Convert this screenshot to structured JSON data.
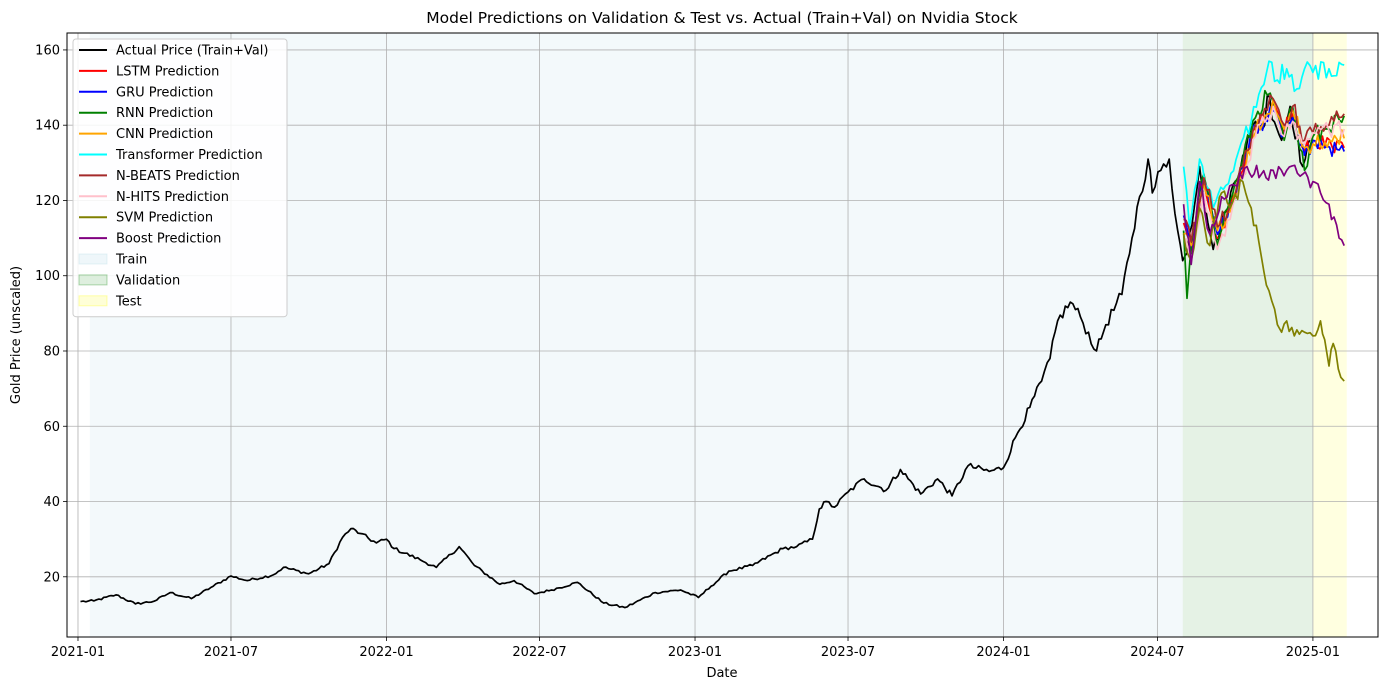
{
  "chart_data": {
    "type": "line",
    "title": "Model Predictions on Validation & Test vs. Actual (Train+Val) on Nvidia Stock",
    "xlabel": "Date",
    "ylabel": "Gold Price (unscaled)",
    "xlim": [
      "2020-12-19",
      "2025-03-19"
    ],
    "ylim": [
      4,
      164.5
    ],
    "x_ticks": [
      {
        "date": "2021-01-01",
        "label": "2021-01"
      },
      {
        "date": "2021-07-01",
        "label": "2021-07"
      },
      {
        "date": "2022-01-01",
        "label": "2022-01"
      },
      {
        "date": "2022-07-01",
        "label": "2022-07"
      },
      {
        "date": "2023-01-01",
        "label": "2023-01"
      },
      {
        "date": "2023-07-01",
        "label": "2023-07"
      },
      {
        "date": "2024-01-01",
        "label": "2024-01"
      },
      {
        "date": "2024-07-01",
        "label": "2024-07"
      },
      {
        "date": "2025-01-01",
        "label": "2025-01"
      }
    ],
    "y_ticks": [
      20,
      40,
      60,
      80,
      100,
      120,
      140,
      160
    ],
    "grid": true,
    "legend_position": "upper-left",
    "regions": [
      {
        "name": "Train",
        "start": "2021-01-15",
        "end": "2024-07-31",
        "color": "#add8e6",
        "alpha": 0.15
      },
      {
        "name": "Validation",
        "start": "2024-07-31",
        "end": "2025-01-01",
        "color": "#008000",
        "alpha": 0.1
      },
      {
        "name": "Test",
        "start": "2025-01-01",
        "end": "2025-02-10",
        "color": "#ffff00",
        "alpha": 0.12
      }
    ],
    "series": [
      {
        "name": "Actual Price (Train+Val)",
        "color": "#000000",
        "points": [
          [
            "2021-01-04",
            13.4
          ],
          [
            "2021-01-20",
            13.6
          ],
          [
            "2021-02-15",
            15.2
          ],
          [
            "2021-03-10",
            12.8
          ],
          [
            "2021-04-01",
            13.5
          ],
          [
            "2021-04-20",
            15.8
          ],
          [
            "2021-05-15",
            14.2
          ],
          [
            "2021-06-10",
            17.5
          ],
          [
            "2021-07-01",
            20.2
          ],
          [
            "2021-07-20",
            19.0
          ],
          [
            "2021-08-20",
            20.5
          ],
          [
            "2021-09-01",
            22.5
          ],
          [
            "2021-10-01",
            20.8
          ],
          [
            "2021-10-25",
            23.5
          ],
          [
            "2021-11-10",
            30.5
          ],
          [
            "2021-11-20",
            32.8
          ],
          [
            "2021-12-01",
            31.5
          ],
          [
            "2021-12-20",
            29.0
          ],
          [
            "2022-01-01",
            30.0
          ],
          [
            "2022-01-10",
            27.5
          ],
          [
            "2022-02-10",
            24.5
          ],
          [
            "2022-03-01",
            22.5
          ],
          [
            "2022-03-28",
            28.0
          ],
          [
            "2022-04-15",
            23.0
          ],
          [
            "2022-05-15",
            18.0
          ],
          [
            "2022-06-01",
            19.0
          ],
          [
            "2022-06-25",
            15.5
          ],
          [
            "2022-07-15",
            16.5
          ],
          [
            "2022-08-15",
            18.5
          ],
          [
            "2022-09-15",
            13.0
          ],
          [
            "2022-10-10",
            11.8
          ],
          [
            "2022-11-15",
            15.8
          ],
          [
            "2022-12-15",
            16.5
          ],
          [
            "2023-01-05",
            14.5
          ],
          [
            "2023-01-20",
            17.5
          ],
          [
            "2023-02-10",
            21.5
          ],
          [
            "2023-03-10",
            23.0
          ],
          [
            "2023-04-15",
            27.5
          ],
          [
            "2023-05-01",
            28.0
          ],
          [
            "2023-05-20",
            30.0
          ],
          [
            "2023-05-28",
            38.0
          ],
          [
            "2023-06-05",
            40.0
          ],
          [
            "2023-06-15",
            38.5
          ],
          [
            "2023-07-01",
            42.5
          ],
          [
            "2023-07-20",
            46.0
          ],
          [
            "2023-08-15",
            43.0
          ],
          [
            "2023-09-01",
            48.5
          ],
          [
            "2023-09-25",
            42.0
          ],
          [
            "2023-10-15",
            46.0
          ],
          [
            "2023-11-01",
            41.5
          ],
          [
            "2023-11-20",
            49.5
          ],
          [
            "2023-12-15",
            48.0
          ],
          [
            "2024-01-01",
            49.0
          ],
          [
            "2024-01-15",
            57.0
          ],
          [
            "2024-02-01",
            65.0
          ],
          [
            "2024-02-15",
            72.0
          ],
          [
            "2024-02-25",
            78.0
          ],
          [
            "2024-03-05",
            88.0
          ],
          [
            "2024-03-20",
            93.0
          ],
          [
            "2024-04-01",
            89.0
          ],
          [
            "2024-04-20",
            80.0
          ],
          [
            "2024-05-01",
            87.0
          ],
          [
            "2024-05-20",
            95.0
          ],
          [
            "2024-06-01",
            110.0
          ],
          [
            "2024-06-10",
            121.0
          ],
          [
            "2024-06-20",
            131.0
          ],
          [
            "2024-06-25",
            122.0
          ],
          [
            "2024-07-05",
            128.0
          ],
          [
            "2024-07-15",
            131.0
          ],
          [
            "2024-07-25",
            112.0
          ],
          [
            "2024-07-31",
            104.0
          ],
          [
            "2024-08-05",
            106.0
          ],
          [
            "2024-08-20",
            129.0
          ],
          [
            "2024-09-05",
            107.0
          ],
          [
            "2024-09-20",
            117.0
          ],
          [
            "2024-10-10",
            132.0
          ],
          [
            "2024-10-25",
            141.0
          ],
          [
            "2024-11-05",
            140.0
          ],
          [
            "2024-11-08",
            148.0
          ],
          [
            "2024-11-25",
            136.0
          ],
          [
            "2024-12-05",
            145.0
          ],
          [
            "2024-12-20",
            129.0
          ],
          [
            "2025-01-01",
            137.0
          ]
        ]
      },
      {
        "name": "LSTM Prediction",
        "color": "#ff0000",
        "points": [
          [
            "2024-08-01",
            114.0
          ],
          [
            "2024-08-10",
            106.0
          ],
          [
            "2024-08-25",
            125.0
          ],
          [
            "2024-09-10",
            110.0
          ],
          [
            "2024-09-25",
            118.0
          ],
          [
            "2024-10-10",
            128.0
          ],
          [
            "2024-10-25",
            139.0
          ],
          [
            "2024-11-08",
            142.0
          ],
          [
            "2024-11-15",
            146.0
          ],
          [
            "2024-11-28",
            138.0
          ],
          [
            "2024-12-08",
            143.0
          ],
          [
            "2024-12-22",
            133.0
          ],
          [
            "2025-01-01",
            136.0
          ],
          [
            "2025-01-15",
            134.5
          ],
          [
            "2025-02-07",
            134.0
          ]
        ]
      },
      {
        "name": "GRU Prediction",
        "color": "#0000ff",
        "points": [
          [
            "2024-08-01",
            116.0
          ],
          [
            "2024-08-10",
            107.0
          ],
          [
            "2024-08-25",
            126.0
          ],
          [
            "2024-09-10",
            111.0
          ],
          [
            "2024-09-25",
            119.0
          ],
          [
            "2024-10-10",
            129.0
          ],
          [
            "2024-10-25",
            140.0
          ],
          [
            "2024-11-08",
            141.0
          ],
          [
            "2024-11-15",
            144.0
          ],
          [
            "2024-11-28",
            137.0
          ],
          [
            "2024-12-08",
            142.0
          ],
          [
            "2024-12-22",
            132.0
          ],
          [
            "2025-01-01",
            136.0
          ],
          [
            "2025-01-15",
            134.0
          ],
          [
            "2025-02-07",
            133.0
          ]
        ]
      },
      {
        "name": "RNN Prediction",
        "color": "#008000",
        "points": [
          [
            "2024-08-01",
            112.0
          ],
          [
            "2024-08-05",
            94.0
          ],
          [
            "2024-08-12",
            112.0
          ],
          [
            "2024-08-25",
            127.0
          ],
          [
            "2024-09-10",
            108.0
          ],
          [
            "2024-09-25",
            120.0
          ],
          [
            "2024-10-10",
            131.0
          ],
          [
            "2024-10-25",
            142.0
          ],
          [
            "2024-11-08",
            148.0
          ],
          [
            "2024-11-15",
            146.0
          ],
          [
            "2024-11-28",
            136.0
          ],
          [
            "2024-12-08",
            145.0
          ],
          [
            "2024-12-22",
            128.0
          ],
          [
            "2025-01-01",
            137.0
          ],
          [
            "2025-01-15",
            139.0
          ],
          [
            "2025-02-07",
            142.5
          ]
        ]
      },
      {
        "name": "CNN Prediction",
        "color": "#ffa500",
        "points": [
          [
            "2024-08-01",
            111.0
          ],
          [
            "2024-08-10",
            108.0
          ],
          [
            "2024-08-25",
            124.0
          ],
          [
            "2024-09-10",
            112.0
          ],
          [
            "2024-09-25",
            117.0
          ],
          [
            "2024-10-10",
            127.0
          ],
          [
            "2024-10-25",
            138.0
          ],
          [
            "2024-11-08",
            143.0
          ],
          [
            "2024-11-15",
            147.0
          ],
          [
            "2024-11-28",
            139.0
          ],
          [
            "2024-12-08",
            144.0
          ],
          [
            "2024-12-22",
            134.0
          ],
          [
            "2025-01-01",
            135.0
          ],
          [
            "2025-01-15",
            135.5
          ],
          [
            "2025-02-07",
            136.5
          ]
        ]
      },
      {
        "name": "Transformer Prediction",
        "color": "#00ffff",
        "points": [
          [
            "2024-08-01",
            129.0
          ],
          [
            "2024-08-08",
            113.0
          ],
          [
            "2024-08-20",
            131.0
          ],
          [
            "2024-09-05",
            118.0
          ],
          [
            "2024-09-20",
            124.0
          ],
          [
            "2024-10-05",
            133.0
          ],
          [
            "2024-10-20",
            141.0
          ],
          [
            "2024-11-01",
            150.0
          ],
          [
            "2024-11-10",
            157.0
          ],
          [
            "2024-11-20",
            152.0
          ],
          [
            "2024-12-01",
            155.0
          ],
          [
            "2024-12-10",
            149.0
          ],
          [
            "2024-12-22",
            155.0
          ],
          [
            "2025-01-01",
            154.0
          ],
          [
            "2025-01-20",
            155.0
          ],
          [
            "2025-02-07",
            156.0
          ]
        ]
      },
      {
        "name": "N-BEATS Prediction",
        "color": "#a52a2a",
        "points": [
          [
            "2024-08-01",
            115.0
          ],
          [
            "2024-08-10",
            109.0
          ],
          [
            "2024-08-25",
            126.0
          ],
          [
            "2024-09-10",
            113.0
          ],
          [
            "2024-09-25",
            119.0
          ],
          [
            "2024-10-10",
            129.0
          ],
          [
            "2024-10-25",
            140.0
          ],
          [
            "2024-11-08",
            144.0
          ],
          [
            "2024-11-15",
            147.0
          ],
          [
            "2024-11-28",
            140.0
          ],
          [
            "2024-12-08",
            145.0
          ],
          [
            "2024-12-22",
            136.0
          ],
          [
            "2025-01-01",
            138.0
          ],
          [
            "2025-01-20",
            140.0
          ],
          [
            "2025-02-07",
            143.0
          ]
        ]
      },
      {
        "name": "N-HITS Prediction",
        "color": "#ffc0cb",
        "points": [
          [
            "2024-08-01",
            110.0
          ],
          [
            "2024-08-10",
            104.0
          ],
          [
            "2024-08-25",
            122.0
          ],
          [
            "2024-09-10",
            107.0
          ],
          [
            "2024-09-25",
            115.0
          ],
          [
            "2024-10-10",
            126.0
          ],
          [
            "2024-10-25",
            137.0
          ],
          [
            "2024-11-08",
            142.0
          ],
          [
            "2024-11-15",
            145.0
          ],
          [
            "2024-11-28",
            137.0
          ],
          [
            "2024-12-08",
            141.0
          ],
          [
            "2024-12-22",
            135.0
          ],
          [
            "2025-01-01",
            138.0
          ],
          [
            "2025-01-20",
            138.5
          ],
          [
            "2025-02-07",
            139.0
          ]
        ]
      },
      {
        "name": "SVM Prediction",
        "color": "#808000",
        "points": [
          [
            "2024-08-01",
            111.0
          ],
          [
            "2024-08-10",
            104.0
          ],
          [
            "2024-08-20",
            118.0
          ],
          [
            "2024-09-01",
            108.0
          ],
          [
            "2024-09-15",
            122.0
          ],
          [
            "2024-09-25",
            118.0
          ],
          [
            "2024-10-10",
            125.0
          ],
          [
            "2024-10-20",
            118.0
          ],
          [
            "2024-11-01",
            105.0
          ],
          [
            "2024-11-10",
            96.0
          ],
          [
            "2024-11-20",
            87.0
          ],
          [
            "2024-11-25",
            85.0
          ],
          [
            "2024-12-01",
            88.0
          ],
          [
            "2024-12-10",
            84.0
          ],
          [
            "2024-12-22",
            85.0
          ],
          [
            "2025-01-01",
            84.0
          ],
          [
            "2025-01-10",
            88.0
          ],
          [
            "2025-01-15",
            83.0
          ],
          [
            "2025-01-20",
            76.0
          ],
          [
            "2025-01-25",
            82.0
          ],
          [
            "2025-02-03",
            73.0
          ],
          [
            "2025-02-07",
            72.0
          ]
        ]
      },
      {
        "name": "Boost Prediction",
        "color": "#800080",
        "points": [
          [
            "2024-08-01",
            119.0
          ],
          [
            "2024-08-10",
            103.0
          ],
          [
            "2024-08-20",
            125.0
          ],
          [
            "2024-09-01",
            111.0
          ],
          [
            "2024-09-15",
            121.0
          ],
          [
            "2024-10-01",
            124.0
          ],
          [
            "2024-10-15",
            129.0
          ],
          [
            "2024-11-01",
            127.0
          ],
          [
            "2024-11-15",
            128.0
          ],
          [
            "2024-12-01",
            128.0
          ],
          [
            "2024-12-20",
            127.0
          ],
          [
            "2025-01-01",
            125.0
          ],
          [
            "2025-01-10",
            122.0
          ],
          [
            "2025-01-20",
            119.0
          ],
          [
            "2025-02-01",
            110.0
          ],
          [
            "2025-02-07",
            108.0
          ]
        ]
      }
    ]
  }
}
